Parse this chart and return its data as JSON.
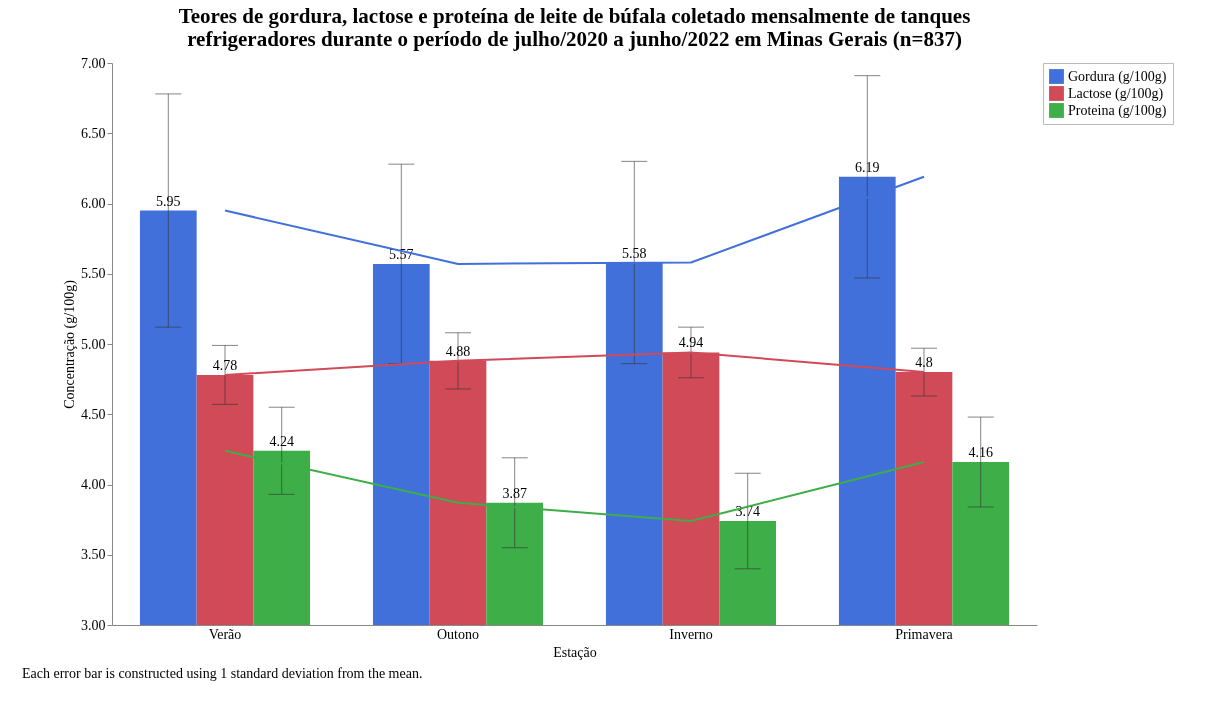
{
  "chart_data": {
    "type": "bar",
    "title": "Teores de gordura, lactose e proteína de leite de búfala coletado mensalmente de tanques refrigeradores durante o período de julho/2020 a junho/2022 em Minas Gerais (n=837)",
    "xlabel": "Estação",
    "ylabel": "Concentração (g/100g)",
    "categories": [
      "Verão",
      "Outono",
      "Inverno",
      "Primavera"
    ],
    "series": [
      {
        "name": "Gordura (g/100g)",
        "color": "#4270db",
        "values": [
          5.95,
          5.57,
          5.58,
          6.19
        ],
        "errors": [
          0.83,
          0.71,
          0.72,
          0.72
        ],
        "value_labels": [
          "5.95",
          "5.57",
          "5.58",
          "6.19"
        ]
      },
      {
        "name": "Lactose (g/100g)",
        "color": "#d04a58",
        "values": [
          4.78,
          4.88,
          4.94,
          4.8
        ],
        "errors": [
          0.21,
          0.2,
          0.18,
          0.17
        ],
        "value_labels": [
          "4.78",
          "4.88",
          "4.94",
          "4.8"
        ]
      },
      {
        "name": "Proteina (g/100g)",
        "color": "#3dae48",
        "values": [
          4.24,
          3.87,
          3.74,
          4.16
        ],
        "errors": [
          0.31,
          0.32,
          0.34,
          0.32
        ],
        "value_labels": [
          "4.24",
          "3.87",
          "3.74",
          "4.16"
        ]
      },
      {
        "type": "line",
        "color": "#4270db",
        "values": [
          5.95,
          5.57,
          5.58,
          6.19
        ]
      },
      {
        "type": "line",
        "color": "#d04a58",
        "values": [
          4.78,
          4.88,
          4.94,
          4.8
        ]
      },
      {
        "type": "line",
        "color": "#3dae48",
        "values": [
          4.24,
          3.87,
          3.74,
          4.16
        ]
      }
    ],
    "ylim": [
      3,
      7
    ],
    "yticks": [
      {
        "value": 3,
        "label": "3.00"
      },
      {
        "value": 3.5,
        "label": "3.50"
      },
      {
        "value": 4,
        "label": "4.00"
      },
      {
        "value": 4.5,
        "label": "4.50"
      },
      {
        "value": 5,
        "label": "5.00"
      },
      {
        "value": 5.5,
        "label": "5.50"
      },
      {
        "value": 6,
        "label": "6.00"
      },
      {
        "value": 6.5,
        "label": "6.50"
      },
      {
        "value": 7,
        "label": "7.00"
      }
    ],
    "grid": false,
    "legend": "top right",
    "annotations": [
      "Each error bar is constructed using 1 standard deviation from the mean."
    ]
  }
}
